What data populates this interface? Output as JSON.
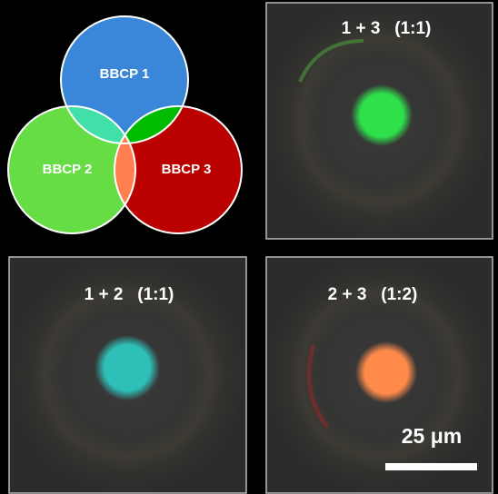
{
  "venn": {
    "labels": [
      "BBCP 1",
      "BBCP 2",
      "BBCP 3"
    ]
  },
  "panels": [
    {
      "title": "1 + 3   (1:1)"
    },
    {
      "title": "1 + 2   (1:1)"
    },
    {
      "title": "2 + 3   (1:2)"
    }
  ],
  "scale_bar": {
    "label": "25 μm"
  }
}
